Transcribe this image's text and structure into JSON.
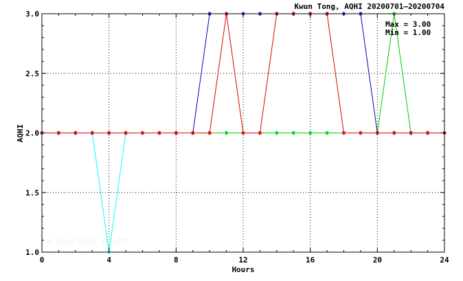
{
  "chart_data": {
    "type": "line",
    "title": "Kwun Tong, AQHI 20200701–20200704",
    "xlabel": "Hours",
    "ylabel": "AQHI",
    "xlim": [
      0,
      24
    ],
    "ylim": [
      1.0,
      3.0
    ],
    "x_ticks": [
      0,
      4,
      8,
      12,
      16,
      20,
      24
    ],
    "y_ticks": [
      1.0,
      1.5,
      2.0,
      2.5,
      3.0
    ],
    "x_tick_labels": [
      "0",
      "4",
      "8",
      "12",
      "16",
      "20",
      "24"
    ],
    "y_tick_labels": [
      "1.0",
      "1.5",
      "2.0",
      "2.5",
      "3.0"
    ],
    "grid": "dotted",
    "stats": {
      "max_label": "Max = 3.00",
      "min_label": "Min = 1.00"
    },
    "watermark": "© 2026  ENVF, HKUST",
    "x": [
      0,
      1,
      2,
      3,
      4,
      5,
      6,
      7,
      8,
      9,
      10,
      11,
      12,
      13,
      14,
      15,
      16,
      17,
      18,
      19,
      20,
      21,
      22,
      23,
      24
    ],
    "series": [
      {
        "color": "#00ffff",
        "values": [
          2,
          2,
          2,
          2,
          1,
          2,
          2,
          2,
          2,
          2,
          2,
          2,
          2,
          2,
          2,
          2,
          2,
          2,
          2,
          2,
          2,
          2,
          2,
          2,
          2
        ]
      },
      {
        "color": "#00cc00",
        "values": [
          2,
          2,
          2,
          2,
          2,
          2,
          2,
          2,
          2,
          2,
          2,
          2,
          2,
          2,
          2,
          2,
          2,
          2,
          2,
          2,
          2,
          3,
          2,
          2,
          2
        ]
      },
      {
        "color": "#0000bb",
        "values": [
          2,
          2,
          2,
          2,
          2,
          2,
          2,
          2,
          2,
          2,
          3,
          3,
          3,
          3,
          3,
          3,
          3,
          3,
          3,
          3,
          2,
          2,
          2,
          2,
          2
        ]
      },
      {
        "color": "#dd0000",
        "values": [
          2,
          2,
          2,
          2,
          2,
          2,
          2,
          2,
          2,
          2,
          2,
          3,
          2,
          2,
          3,
          3,
          3,
          3,
          2,
          2,
          2,
          2,
          2,
          2,
          2
        ]
      }
    ]
  }
}
